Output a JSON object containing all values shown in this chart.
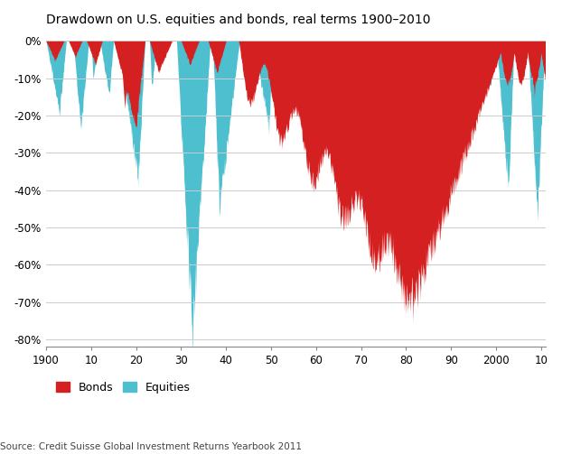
{
  "title": "Drawdown on U.S. equities and bonds, real terms 1900–2010",
  "source": "Source: Credit Suisse Global Investment Returns Yearbook 2011",
  "bond_color": "#d42020",
  "equity_color": "#4dbfcf",
  "background_color": "#ffffff",
  "grid_color": "#cccccc",
  "ylim": [
    -82,
    2
  ],
  "yticks": [
    0,
    -10,
    -20,
    -30,
    -40,
    -50,
    -60,
    -70,
    -80
  ],
  "ytick_labels": [
    "0%",
    "-10%",
    "-20%",
    "-30%",
    "-40%",
    "-50%",
    "-60%",
    "-70%",
    "-80%"
  ],
  "xticks": [
    1900,
    1910,
    1920,
    1930,
    1940,
    1950,
    1960,
    1970,
    1980,
    1990,
    2000,
    2010
  ],
  "xtick_labels": [
    "1900",
    "10",
    "20",
    "30",
    "40",
    "50",
    "60",
    "70",
    "80",
    "90",
    "2000",
    "10"
  ]
}
